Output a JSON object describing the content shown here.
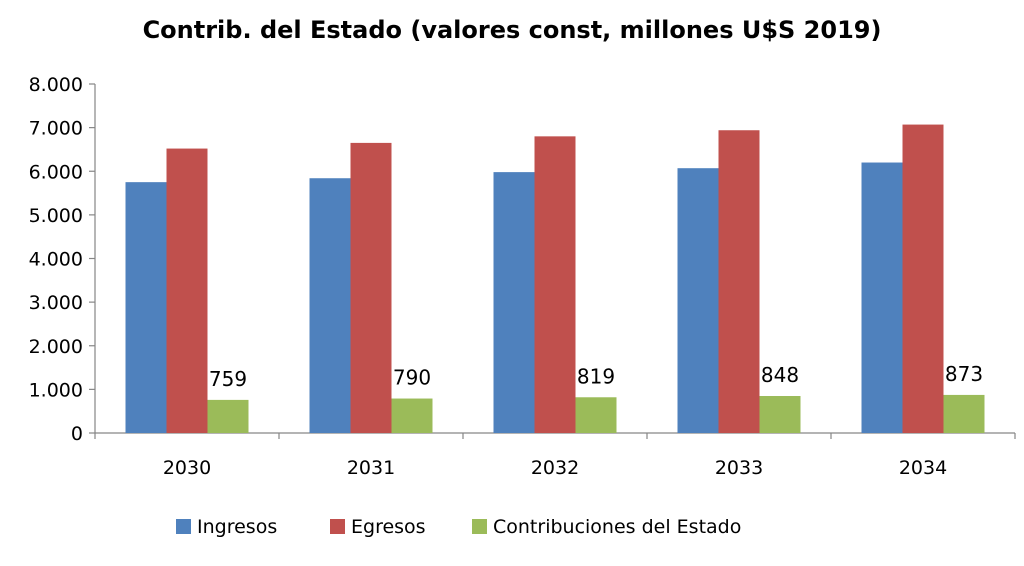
{
  "chart_data": {
    "type": "bar",
    "title": "Contrib. del Estado (valores const, millones U$S 2019)",
    "xlabel": "",
    "ylabel": "",
    "categories": [
      "2030",
      "2031",
      "2032",
      "2033",
      "2034"
    ],
    "series": [
      {
        "name": "Ingresos",
        "color": "#4F81BD",
        "values": [
          5750,
          5840,
          5980,
          6070,
          6200
        ]
      },
      {
        "name": "Egresos",
        "color": "#C0504D",
        "values": [
          6520,
          6650,
          6800,
          6940,
          7070
        ]
      },
      {
        "name": "Contribuciones del Estado",
        "color": "#9BBB59",
        "values": [
          759,
          790,
          819,
          848,
          873
        ],
        "data_labels": [
          "759",
          "790",
          "819",
          "848",
          "873"
        ]
      }
    ],
    "ylim": [
      0,
      8000
    ],
    "yticks": [
      0,
      1000,
      2000,
      3000,
      4000,
      5000,
      6000,
      7000,
      8000
    ],
    "ytick_labels": [
      "0",
      "1.000",
      "2.000",
      "3.000",
      "4.000",
      "5.000",
      "6.000",
      "7.000",
      "8.000"
    ],
    "grid": false,
    "legend_position": "bottom"
  }
}
